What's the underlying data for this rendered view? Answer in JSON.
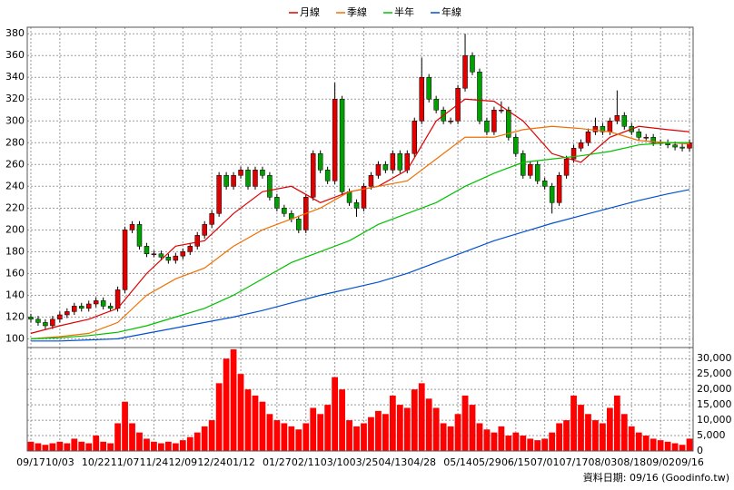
{
  "chart_data": [
    {
      "type": "candlestick",
      "open": [
        120,
        118,
        115,
        112,
        118,
        122,
        125,
        130,
        128,
        132,
        135,
        130,
        128,
        145,
        200,
        205,
        185,
        178,
        178,
        175,
        172,
        176,
        180,
        185,
        195,
        205,
        215,
        250,
        240,
        250,
        255,
        240,
        255,
        250,
        230,
        220,
        215,
        210,
        200,
        230,
        270,
        255,
        245,
        320,
        235,
        225,
        220,
        240,
        250,
        260,
        255,
        270,
        255,
        270,
        300,
        340,
        320,
        310,
        300,
        300,
        330,
        360,
        345,
        300,
        290,
        310,
        310,
        285,
        270,
        250,
        260,
        245,
        240,
        225,
        250,
        265,
        275,
        280,
        290,
        295,
        290,
        300,
        305,
        295,
        290,
        285,
        285,
        280,
        280,
        278,
        276,
        275
      ],
      "high": [
        123,
        121,
        118,
        121,
        125,
        128,
        133,
        133,
        135,
        138,
        138,
        133,
        148,
        203,
        208,
        208,
        188,
        181,
        181,
        178,
        179,
        183,
        188,
        198,
        208,
        218,
        253,
        253,
        253,
        258,
        258,
        258,
        258,
        253,
        233,
        223,
        218,
        213,
        233,
        273,
        273,
        258,
        335,
        323,
        238,
        228,
        243,
        253,
        263,
        263,
        273,
        273,
        273,
        303,
        358,
        343,
        323,
        313,
        303,
        333,
        380,
        363,
        348,
        303,
        313,
        318,
        313,
        288,
        273,
        263,
        263,
        248,
        243,
        253,
        268,
        278,
        283,
        293,
        303,
        298,
        303,
        328,
        308,
        298,
        293,
        288,
        288,
        283,
        283,
        281,
        279,
        283
      ],
      "low": [
        115,
        112,
        109,
        109,
        115,
        119,
        122,
        125,
        125,
        129,
        127,
        125,
        125,
        142,
        197,
        182,
        175,
        175,
        172,
        169,
        169,
        173,
        177,
        182,
        192,
        202,
        212,
        237,
        237,
        247,
        237,
        237,
        247,
        227,
        217,
        212,
        207,
        197,
        197,
        227,
        252,
        242,
        242,
        232,
        222,
        212,
        217,
        237,
        247,
        252,
        252,
        252,
        252,
        267,
        297,
        317,
        307,
        297,
        297,
        297,
        327,
        342,
        297,
        287,
        287,
        307,
        282,
        267,
        247,
        247,
        242,
        237,
        215,
        222,
        247,
        262,
        272,
        277,
        287,
        287,
        287,
        297,
        292,
        287,
        282,
        282,
        277,
        277,
        275,
        273,
        272,
        272
      ],
      "close": [
        118,
        115,
        112,
        118,
        122,
        125,
        130,
        128,
        132,
        135,
        130,
        128,
        145,
        200,
        205,
        185,
        178,
        178,
        175,
        172,
        176,
        180,
        185,
        195,
        205,
        215,
        250,
        240,
        250,
        255,
        240,
        255,
        250,
        230,
        220,
        215,
        210,
        200,
        230,
        270,
        255,
        245,
        320,
        235,
        225,
        220,
        240,
        250,
        260,
        255,
        270,
        255,
        270,
        300,
        340,
        320,
        310,
        300,
        300,
        330,
        360,
        345,
        300,
        290,
        310,
        310,
        285,
        270,
        250,
        260,
        245,
        240,
        225,
        250,
        265,
        275,
        280,
        290,
        295,
        290,
        300,
        305,
        295,
        290,
        285,
        285,
        280,
        280,
        278,
        276,
        275,
        280
      ],
      "up_color": "#e00000",
      "down_color": "#00a000",
      "xlim": [
        -0.5,
        91.5
      ],
      "ylim": [
        92,
        386
      ],
      "yticks": [
        100,
        120,
        140,
        160,
        180,
        200,
        220,
        240,
        260,
        280,
        300,
        320,
        340,
        360,
        380
      ],
      "grid": true,
      "series": [
        {
          "name": "月線",
          "color": "#e00000",
          "x": [
            0,
            4,
            8,
            12,
            16,
            20,
            24,
            28,
            32,
            36,
            40,
            44,
            48,
            52,
            56,
            60,
            64,
            68,
            72,
            76,
            80,
            84,
            88,
            91
          ],
          "values": [
            105,
            112,
            118,
            128,
            160,
            185,
            190,
            215,
            235,
            240,
            225,
            235,
            240,
            255,
            300,
            320,
            318,
            300,
            270,
            262,
            285,
            295,
            292,
            290
          ]
        },
        {
          "name": "季線",
          "color": "#f07000",
          "x": [
            0,
            4,
            8,
            12,
            16,
            20,
            24,
            28,
            32,
            36,
            40,
            44,
            48,
            52,
            56,
            60,
            64,
            68,
            72,
            76,
            80,
            84,
            88,
            91
          ],
          "values": [
            100,
            102,
            105,
            115,
            140,
            155,
            165,
            185,
            200,
            210,
            220,
            235,
            240,
            245,
            265,
            285,
            285,
            292,
            295,
            293,
            290,
            282,
            280,
            279
          ]
        },
        {
          "name": "半年",
          "color": "#00c000",
          "x": [
            0,
            4,
            8,
            12,
            16,
            20,
            24,
            28,
            32,
            36,
            40,
            44,
            48,
            52,
            56,
            60,
            64,
            68,
            72,
            76,
            80,
            84,
            88,
            91
          ],
          "values": [
            100,
            101,
            103,
            106,
            112,
            120,
            128,
            140,
            155,
            170,
            180,
            190,
            205,
            215,
            225,
            240,
            252,
            262,
            265,
            268,
            272,
            278,
            280,
            280
          ]
        },
        {
          "name": "年線",
          "color": "#0050d0",
          "x": [
            0,
            4,
            8,
            12,
            16,
            20,
            24,
            28,
            32,
            36,
            40,
            44,
            48,
            52,
            56,
            60,
            64,
            68,
            72,
            76,
            80,
            84,
            88,
            91
          ],
          "values": [
            98,
            98,
            99,
            100,
            105,
            110,
            115,
            120,
            126,
            133,
            140,
            146,
            152,
            160,
            170,
            180,
            190,
            198,
            206,
            213,
            220,
            227,
            233,
            237
          ]
        }
      ]
    },
    {
      "type": "bar",
      "values": [
        3000,
        2500,
        2000,
        2500,
        3000,
        2500,
        4000,
        3000,
        2500,
        5000,
        3000,
        2500,
        9000,
        16000,
        9000,
        6000,
        4000,
        3000,
        2500,
        3000,
        2500,
        3500,
        4500,
        6000,
        8000,
        10000,
        22000,
        30000,
        33000,
        25000,
        20000,
        18000,
        16000,
        12000,
        10000,
        9000,
        8000,
        7000,
        9000,
        14000,
        12000,
        15000,
        24000,
        20000,
        10000,
        8000,
        9000,
        11000,
        13000,
        12000,
        18000,
        15000,
        14000,
        20000,
        22000,
        17000,
        14000,
        9000,
        8000,
        12000,
        18000,
        15000,
        9000,
        7000,
        6000,
        8000,
        5000,
        6000,
        5000,
        4000,
        3500,
        4000,
        6000,
        9000,
        10000,
        18000,
        15000,
        12000,
        10000,
        9000,
        14000,
        18000,
        12000,
        8000,
        6000,
        5000,
        4000,
        3500,
        3000,
        2500,
        2000,
        4000
      ],
      "color": "#ff0000",
      "xlim": [
        -0.5,
        91.5
      ],
      "xticks": [
        {
          "value": 0,
          "label": "09/17"
        },
        {
          "value": 4,
          "label": "10/03"
        },
        {
          "value": 9,
          "label": "10/22"
        },
        {
          "value": 13,
          "label": "11/07"
        },
        {
          "value": 17,
          "label": "11/24"
        },
        {
          "value": 21,
          "label": "12/09"
        },
        {
          "value": 25,
          "label": "12/24"
        },
        {
          "value": 29,
          "label": "01/12"
        },
        {
          "value": 34,
          "label": "01/27"
        },
        {
          "value": 38,
          "label": "02/11"
        },
        {
          "value": 42,
          "label": "03/10"
        },
        {
          "value": 46,
          "label": "03/25"
        },
        {
          "value": 50,
          "label": "04/13"
        },
        {
          "value": 54,
          "label": "04/28"
        },
        {
          "value": 59,
          "label": "05/14"
        },
        {
          "value": 63,
          "label": "05/29"
        },
        {
          "value": 67,
          "label": "06/15"
        },
        {
          "value": 71,
          "label": "07/01"
        },
        {
          "value": 75,
          "label": "07/17"
        },
        {
          "value": 79,
          "label": "08/03"
        },
        {
          "value": 83,
          "label": "08/18"
        },
        {
          "value": 87,
          "label": "09/02"
        },
        {
          "value": 91,
          "label": "09/16"
        }
      ],
      "ylim": [
        0,
        33600
      ],
      "yticks": [
        0,
        {
          "value": 5000,
          "label": "5,000"
        },
        {
          "value": 10000,
          "label": "10,000"
        },
        {
          "value": 15000,
          "label": "15,000"
        },
        {
          "value": 20000,
          "label": "20,000"
        },
        {
          "value": 25000,
          "label": "25,000"
        },
        {
          "value": 30000,
          "label": "30,000"
        }
      ],
      "grid": true
    }
  ],
  "footer": "資料日期: 09/16 (Goodinfo.tw)"
}
